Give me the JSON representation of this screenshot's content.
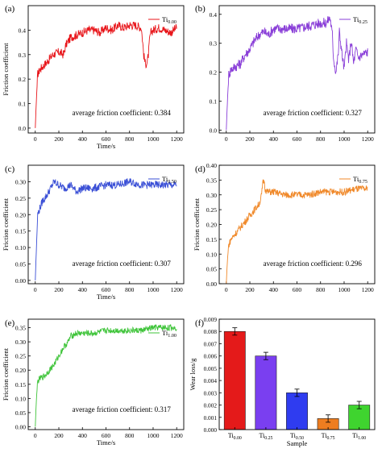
{
  "chart_data": [
    {
      "panel_label": "(a)",
      "type": "line",
      "xlabel": "Time/s",
      "ylabel": "Friction coefficient",
      "xlim": [
        -60,
        1260
      ],
      "ylim": [
        -0.02,
        0.5
      ],
      "xticks": [
        0,
        200,
        400,
        600,
        800,
        1000,
        1200
      ],
      "yticks": [
        0.0,
        0.1,
        0.2,
        0.3,
        0.4
      ],
      "ytick_labels": [
        "0.0",
        "0.1",
        "0.2",
        "0.3",
        "0.4"
      ],
      "series": [
        {
          "name": "Ti0.00",
          "name_base": "Ti",
          "name_sub": "0.00",
          "color": "#e8161b"
        }
      ],
      "annotation": "average friction coefficient: 0.384",
      "x": [
        0,
        10,
        20,
        40,
        60,
        100,
        150,
        200,
        240,
        260,
        300,
        350,
        400,
        450,
        500,
        550,
        600,
        650,
        700,
        750,
        800,
        850,
        900,
        910,
        920,
        935,
        950,
        960,
        970,
        980,
        1000,
        1050,
        1100,
        1150,
        1200
      ],
      "y": [
        0.0,
        0.12,
        0.22,
        0.24,
        0.25,
        0.27,
        0.3,
        0.31,
        0.3,
        0.34,
        0.37,
        0.38,
        0.39,
        0.4,
        0.4,
        0.39,
        0.41,
        0.4,
        0.42,
        0.41,
        0.42,
        0.42,
        0.41,
        0.36,
        0.3,
        0.26,
        0.27,
        0.3,
        0.36,
        0.39,
        0.4,
        0.41,
        0.4,
        0.39,
        0.41
      ]
    },
    {
      "panel_label": "(b)",
      "type": "line",
      "xlabel": "",
      "ylabel": "",
      "xlim": [
        -60,
        1260
      ],
      "ylim": [
        -0.01,
        0.43
      ],
      "xticks": [
        0,
        200,
        400,
        600,
        800,
        1000,
        1200
      ],
      "yticks": [
        0.0,
        0.1,
        0.2,
        0.3,
        0.4
      ],
      "ytick_labels": [
        "0.0",
        "0.1",
        "0.2",
        "0.3",
        "0.4"
      ],
      "series": [
        {
          "name": "Ti0.25",
          "name_base": "Ti",
          "name_sub": "0.25",
          "color": "#8a3fd8"
        }
      ],
      "annotation": "average friction coefficient: 0.327",
      "x": [
        0,
        10,
        20,
        40,
        80,
        120,
        160,
        200,
        240,
        280,
        320,
        360,
        400,
        500,
        600,
        700,
        800,
        850,
        880,
        890,
        900,
        910,
        930,
        950,
        960,
        980,
        1000,
        1020,
        1040,
        1060,
        1080,
        1100,
        1120,
        1150,
        1200
      ],
      "y": [
        0.0,
        0.1,
        0.19,
        0.21,
        0.22,
        0.23,
        0.26,
        0.28,
        0.31,
        0.33,
        0.34,
        0.33,
        0.35,
        0.35,
        0.35,
        0.36,
        0.37,
        0.37,
        0.39,
        0.36,
        0.33,
        0.25,
        0.2,
        0.26,
        0.34,
        0.27,
        0.21,
        0.3,
        0.24,
        0.31,
        0.23,
        0.28,
        0.25,
        0.26,
        0.27
      ]
    },
    {
      "panel_label": "(c)",
      "type": "line",
      "xlabel": "Time/s",
      "ylabel": "Friction coefficient",
      "xlim": [
        -60,
        1260
      ],
      "ylim": [
        -0.01,
        0.35
      ],
      "xticks": [
        0,
        200,
        400,
        600,
        800,
        1000,
        1200
      ],
      "yticks": [
        0.0,
        0.05,
        0.1,
        0.15,
        0.2,
        0.25,
        0.3
      ],
      "ytick_labels": [
        "0.00",
        "0.05",
        "0.10",
        "0.15",
        "0.20",
        "0.25",
        "0.30"
      ],
      "series": [
        {
          "name": "Ti0.50",
          "name_base": "Ti",
          "name_sub": "0.50",
          "color": "#3a4fd6"
        }
      ],
      "annotation": "average friction coefficient: 0.307",
      "x": [
        0,
        10,
        20,
        40,
        60,
        80,
        100,
        130,
        160,
        200,
        250,
        300,
        350,
        400,
        500,
        600,
        700,
        800,
        900,
        1000,
        1100,
        1200
      ],
      "y": [
        0.0,
        0.1,
        0.2,
        0.22,
        0.24,
        0.25,
        0.26,
        0.28,
        0.3,
        0.29,
        0.28,
        0.29,
        0.27,
        0.28,
        0.28,
        0.29,
        0.29,
        0.3,
        0.29,
        0.29,
        0.29,
        0.29
      ]
    },
    {
      "panel_label": "(d)",
      "type": "line",
      "xlabel": "",
      "ylabel": "Friction coefficient",
      "xlim": [
        -60,
        1260
      ],
      "ylim": [
        0.0,
        0.4
      ],
      "xticks": [
        0,
        200,
        400,
        600,
        800,
        1000,
        1200
      ],
      "yticks": [
        0.0,
        0.05,
        0.1,
        0.15,
        0.2,
        0.25,
        0.3,
        0.35,
        0.4
      ],
      "ytick_labels": [
        "0.00",
        "0.05",
        "0.10",
        "0.15",
        "0.20",
        "0.25",
        "0.30",
        "0.35",
        "0.40"
      ],
      "series": [
        {
          "name": "Ti0.75",
          "name_base": "Ti",
          "name_sub": "0.75",
          "color": "#f0892a"
        }
      ],
      "annotation": "average friction coefficient: 0.296",
      "x": [
        0,
        10,
        20,
        40,
        80,
        120,
        160,
        200,
        240,
        280,
        300,
        310,
        320,
        330,
        350,
        400,
        500,
        600,
        700,
        800,
        900,
        1000,
        1100,
        1200
      ],
      "y": [
        0.0,
        0.08,
        0.13,
        0.15,
        0.17,
        0.19,
        0.21,
        0.23,
        0.25,
        0.27,
        0.3,
        0.34,
        0.35,
        0.32,
        0.31,
        0.31,
        0.3,
        0.3,
        0.3,
        0.31,
        0.31,
        0.31,
        0.32,
        0.32
      ]
    },
    {
      "panel_label": "(e)",
      "type": "line",
      "xlabel": "Time/s",
      "ylabel": "Friction coefficient",
      "xlim": [
        -60,
        1260
      ],
      "ylim": [
        -0.01,
        0.38
      ],
      "xticks": [
        0,
        200,
        400,
        600,
        800,
        1000,
        1200
      ],
      "yticks": [
        0.0,
        0.05,
        0.1,
        0.15,
        0.2,
        0.25,
        0.3,
        0.35
      ],
      "ytick_labels": [
        "0.00",
        "0.05",
        "0.10",
        "0.15",
        "0.20",
        "0.25",
        "0.30",
        "0.35"
      ],
      "series": [
        {
          "name": "Ti1.00",
          "name_base": "Ti",
          "name_sub": "1.00",
          "color": "#3fc43a"
        }
      ],
      "annotation": "average friction coefficient: 0.317",
      "x": [
        0,
        10,
        20,
        40,
        80,
        120,
        160,
        200,
        240,
        280,
        300,
        350,
        400,
        500,
        600,
        700,
        800,
        900,
        1000,
        1100,
        1200
      ],
      "y": [
        0.0,
        0.1,
        0.16,
        0.17,
        0.18,
        0.2,
        0.22,
        0.25,
        0.28,
        0.3,
        0.32,
        0.33,
        0.33,
        0.33,
        0.34,
        0.34,
        0.34,
        0.34,
        0.35,
        0.35,
        0.35
      ]
    },
    {
      "panel_label": "(f)",
      "type": "bar",
      "xlabel": "Sample",
      "ylabel": "Wear loss/g",
      "ylim": [
        0,
        0.009
      ],
      "yticks": [
        0,
        0.001,
        0.002,
        0.003,
        0.004,
        0.005,
        0.006,
        0.007,
        0.008,
        0.009
      ],
      "ytick_labels": [
        "0.000",
        "0.001",
        "0.002",
        "0.003",
        "0.004",
        "0.005",
        "0.006",
        "0.007",
        "0.008",
        "0.009"
      ],
      "categories": [
        "Ti0.00",
        "Ti0.25",
        "Ti0.50",
        "Ti0.75",
        "Ti1.00"
      ],
      "category_bases": [
        "Ti",
        "Ti",
        "Ti",
        "Ti",
        "Ti"
      ],
      "category_subs": [
        "0.00",
        "0.25",
        "0.50",
        "0.75",
        "1.00"
      ],
      "values": [
        0.008,
        0.006,
        0.003,
        0.0009,
        0.002
      ],
      "errors": [
        0.0003,
        0.0003,
        0.0003,
        0.0003,
        0.0003
      ],
      "colors": [
        "#e41a1a",
        "#7a3ff0",
        "#2f3cf0",
        "#ee7d20",
        "#3fd42f"
      ]
    }
  ]
}
